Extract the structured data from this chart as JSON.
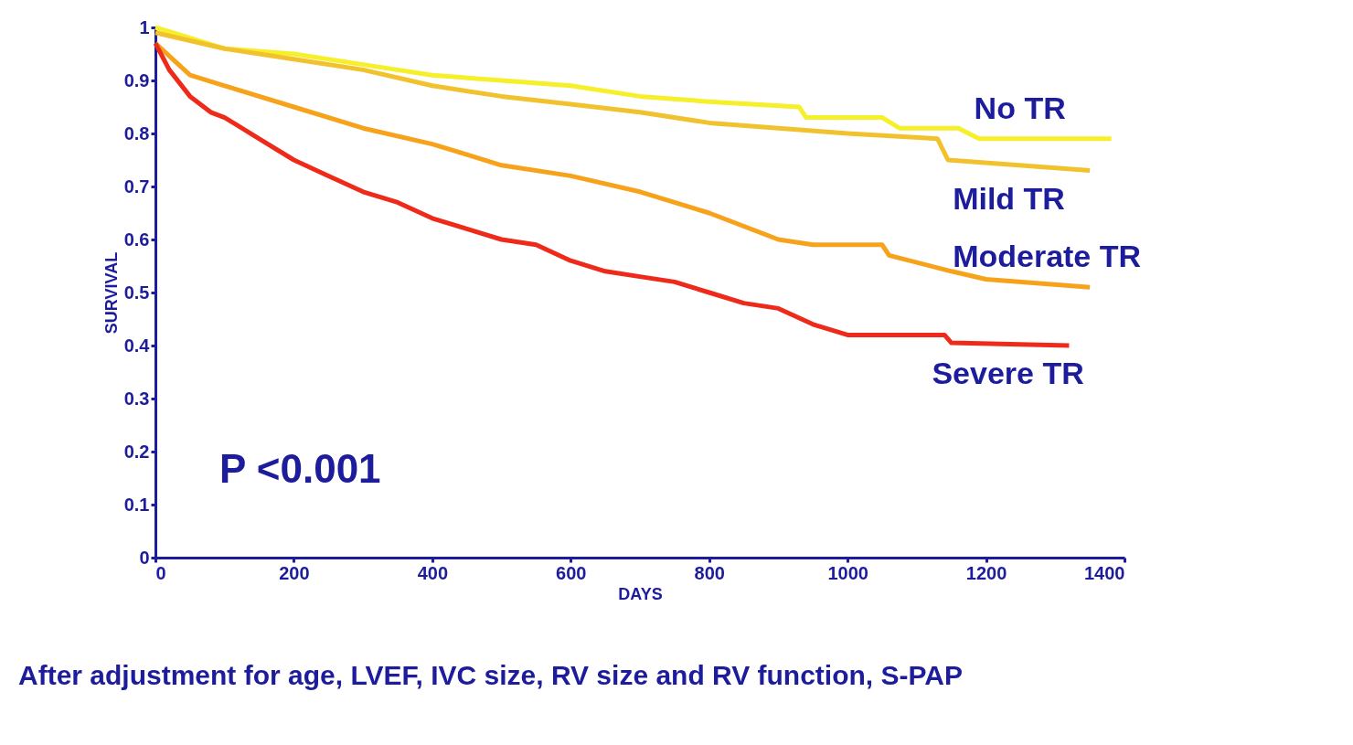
{
  "chart_data": {
    "type": "line",
    "xlabel": "DAYS",
    "ylabel": "SURVIVAL",
    "xlim": [
      0,
      1400
    ],
    "xticks": [
      0,
      200,
      400,
      600,
      800,
      1000,
      1200,
      1400
    ],
    "ylim": [
      0,
      1
    ],
    "yticks": [
      0,
      0.1,
      0.2,
      0.3,
      0.4,
      0.5,
      0.6,
      0.7,
      0.8,
      0.9,
      1
    ],
    "grid": false,
    "legend": false,
    "marker": "none",
    "line_style": "solid",
    "annotations": [
      "P <0.001",
      "After adjustment for age, LVEF, IVC size, RV size and RV function, S-PAP"
    ],
    "series": [
      {
        "name": "No TR",
        "color": "#f5f02a",
        "x": [
          0,
          100,
          200,
          300,
          400,
          500,
          600,
          700,
          800,
          930,
          940,
          1050,
          1075,
          1160,
          1190,
          1381
        ],
        "values": [
          1,
          0.96,
          0.95,
          0.93,
          0.91,
          0.9,
          0.89,
          0.87,
          0.86,
          0.85,
          0.83,
          0.83,
          0.81,
          0.81,
          0.79,
          0.79
        ]
      },
      {
        "name": "Mild TR",
        "color": "#f2c12e",
        "x": [
          0,
          100,
          200,
          300,
          400,
          500,
          600,
          700,
          800,
          900,
          1000,
          1130,
          1145,
          1350
        ],
        "values": [
          0.99,
          0.96,
          0.94,
          0.92,
          0.89,
          0.87,
          0.855,
          0.84,
          0.82,
          0.81,
          0.8,
          0.79,
          0.75,
          0.73
        ]
      },
      {
        "name": "Moderate TR",
        "color": "#f7a21b",
        "x": [
          0,
          50,
          100,
          200,
          300,
          400,
          450,
          500,
          600,
          700,
          800,
          900,
          950,
          1050,
          1060,
          1150,
          1200,
          1350
        ],
        "values": [
          0.97,
          0.91,
          0.89,
          0.85,
          0.81,
          0.78,
          0.76,
          0.74,
          0.72,
          0.69,
          0.65,
          0.6,
          0.59,
          0.59,
          0.57,
          0.54,
          0.525,
          0.51
        ]
      },
      {
        "name": "Severe TR",
        "color": "#ee2a1a",
        "x": [
          0,
          20,
          50,
          80,
          100,
          150,
          200,
          250,
          300,
          350,
          400,
          450,
          500,
          550,
          600,
          650,
          700,
          750,
          800,
          850,
          900,
          950,
          1000,
          1140,
          1150,
          1320
        ],
        "values": [
          0.97,
          0.92,
          0.87,
          0.84,
          0.83,
          0.79,
          0.75,
          0.72,
          0.69,
          0.67,
          0.64,
          0.62,
          0.6,
          0.59,
          0.56,
          0.54,
          0.53,
          0.52,
          0.5,
          0.48,
          0.47,
          0.44,
          0.42,
          0.42,
          0.405,
          0.4
        ]
      }
    ]
  }
}
